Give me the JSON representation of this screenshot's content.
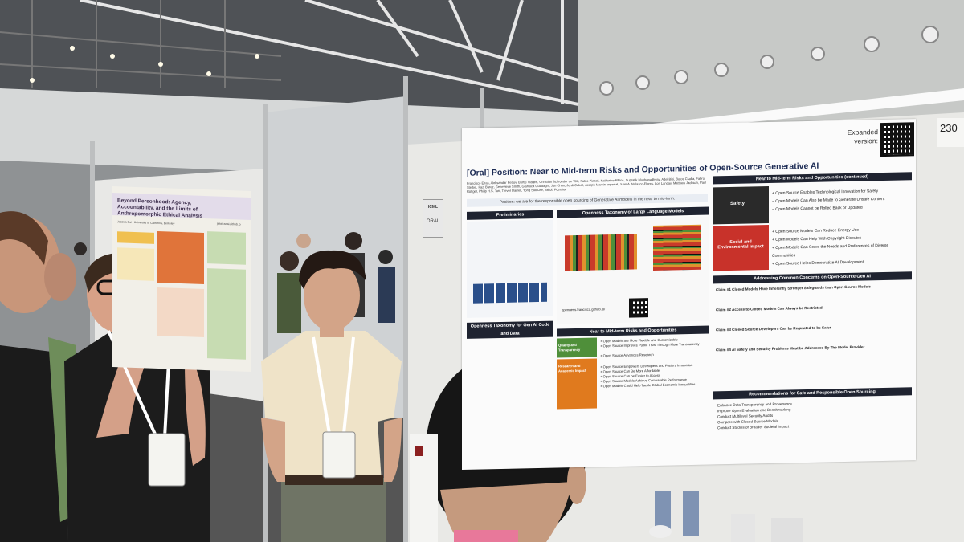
{
  "scene": {
    "description_icons": [
      "person-icon",
      "lanyard-badge-icon",
      "qr-code-icon"
    ]
  },
  "poster_number": "230",
  "main_poster": {
    "title": "[Oral] Position: Near to Mid-term Risks and Opportunities of Open-Source Generative AI",
    "authors": "Francisco Eiras, Aleksandar Petrov, Bertie Vidgen, Christian Schroeder de Witt, Fabio Pizzati, Katherine Elkins, Supratik Mukhopadhyay, Adel Bibi, Botos Csaba, Fabro Steibel, Fazl Barez, Genevieve Smith, Gianluca Guadagni, Jon Chun, Jordi Cabot, Joseph Marvin Imperial, Juan A. Nolazco-Flores, Lori Landay, Matthew Jackson, Paul Röttger, Philip H.S. Torr, Trevor Darrell, Yong Suk Lee, Jakob Foerster",
    "thesis": "Position: we are for the responsible open sourcing of Generative AI models in the near to mid-term.",
    "expanded_label": "Expanded version:",
    "sections": {
      "preliminaries": "Preliminaries",
      "openness_taxonomy": "Openness Taxonomy of Large Language Models",
      "risks_continued": "Near to Mid-term Risks and Opportunities (continued)",
      "risks": "Near to Mid-term Risks and Opportunities",
      "concerns": "Addressing Common Concerns on Open-Source Gen AI",
      "recommendations": "Recommendations for Safe and Responsible Open Sourcing",
      "openness_taxonomy_cont": "Openness Taxonomy for Gen AI Code and Data"
    },
    "safety_label": "Safety",
    "social_label": "Social and Environmental Impact",
    "quality_label": "Quality and Transparency",
    "research_label": "Research and Academic Impact",
    "safety_items": [
      "+ Open Source Enables Technological Innovation for Safety",
      "− Open Models Can Also be Made to Generate Unsafe Content",
      "− Open Models Cannot be Rolled Back or Updated"
    ],
    "social_items": [
      "+ Open Source Models Can Reduce Energy Use",
      "+ Open Models Can Help With Copyright Disputes",
      "+ Open Models Can Serve the Needs and Preferences of Diverse Communities",
      "+ Open Source Helps Democratize AI Development"
    ],
    "claims": [
      "Claim #1 Closed Models Have Inherently Stronger Safeguards than Open-Source Models",
      "Claim #2 Access to Closed Models Can Always be Restricted",
      "Claim #3 Closed Source Developers Can be Regulated to be Safer",
      "Claim #4 AI Safety and Security Problems Must be Addressed By The Model Provider"
    ],
    "recommendations": [
      "Enhance Data Transparency and Provenance",
      "Improve Open Evaluation and Benchmarking",
      "Conduct Multilevel Security Audits",
      "Compare with Closed Source Models",
      "Conduct Studies of Broader Societal Impact"
    ],
    "risk_items": [
      "+ Open Models are More Flexible and Customizable",
      "+ Open Source Improves Public Trust Through More Transparency",
      "+ Open Source Advances Research",
      "+ Open Source Empowers Developers and Fosters Innovation",
      "+ Open Source Can Be More Affordable",
      "+ Open Source Can be Easier to Access",
      "+ Open Source Models Achieve Comparable Performance",
      "+ Open Models Could Help Tackle Global Economic Inequalities"
    ],
    "link": "openness.francisco.github.io/"
  },
  "left_poster": {
    "title": "Beyond Personhood: Agency, Accountability, and the Limits of Anthropomorphic Ethical Analysis",
    "author": "Jessica Dai | University of California, Berkeley",
    "url": "jessicadai.github.io"
  },
  "oral_sign": {
    "org": "ICML",
    "label": "ORAL"
  },
  "colors": {
    "poster_header": "#1f2330",
    "safety_red": "#c8322a",
    "safety_dark": "#2a2a2a",
    "quality_green": "#4f8f3a",
    "research_orange": "#e07a1e",
    "left_poster_purple": "#6a4a7a"
  }
}
